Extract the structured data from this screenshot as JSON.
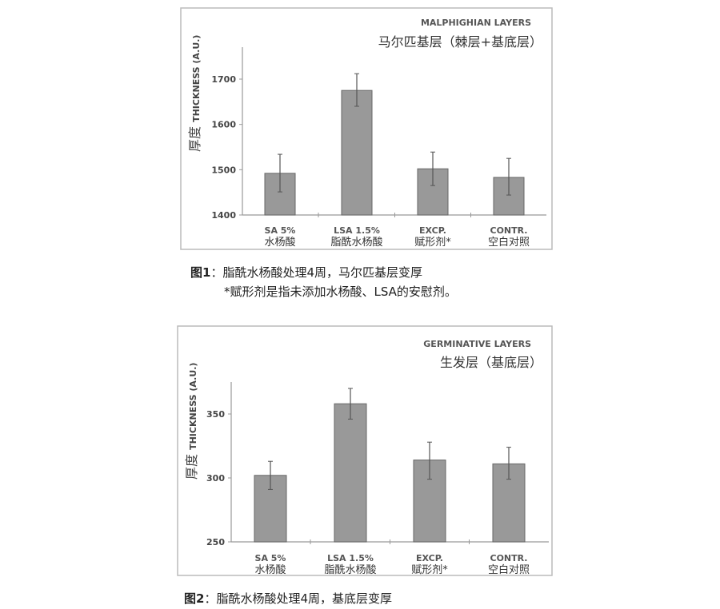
{
  "chart_data": [
    {
      "type": "bar",
      "title": "MALPHIGHIAN LAYERS",
      "subtitle": "马尔匹基层（棘层+基底层）",
      "ylabel_cn": "厚度",
      "ylabel": "THICKNESS (A.U.)",
      "xlabel": "",
      "categories": [
        "SA 5%",
        "LSA 1.5%",
        "EXCP.",
        "CONTR."
      ],
      "categories_cn": [
        "水杨酸",
        "脂酰水杨酸",
        "赋形剂*",
        "空白对照"
      ],
      "values": [
        1492,
        1675,
        1502,
        1483
      ],
      "error_low": [
        1451,
        1640,
        1465,
        1444
      ],
      "error_high": [
        1534,
        1712,
        1539,
        1525
      ],
      "yticks": [
        1400,
        1500,
        1600,
        1700
      ],
      "ylim": [
        1400,
        1750
      ],
      "bar_color": "#999999",
      "caption_label": "图1",
      "caption": "：脂酰水杨酸处理4周，马尔匹基层变厚",
      "caption_note": "*赋形剂是指未添加水杨酸、LSA的安慰剂。"
    },
    {
      "type": "bar",
      "title": "GERMINATIVE LAYERS",
      "subtitle": "生发层（基底层）",
      "ylabel_cn": "厚度",
      "ylabel": "THICKNESS (A.U.)",
      "xlabel": "",
      "categories": [
        "SA 5%",
        "LSA 1.5%",
        "EXCP.",
        "CONTR."
      ],
      "categories_cn": [
        "水杨酸",
        "脂酰水杨酸",
        "赋形剂*",
        "空白对照"
      ],
      "values": [
        302,
        358,
        314,
        311
      ],
      "error_low": [
        291,
        346,
        299,
        299
      ],
      "error_high": [
        313,
        370,
        328,
        324
      ],
      "yticks": [
        250,
        300,
        350
      ],
      "ylim": [
        250,
        375
      ],
      "bar_color": "#999999",
      "caption_label": "图2",
      "caption": "：脂酰水杨酸处理4周，基底层变厚"
    }
  ]
}
